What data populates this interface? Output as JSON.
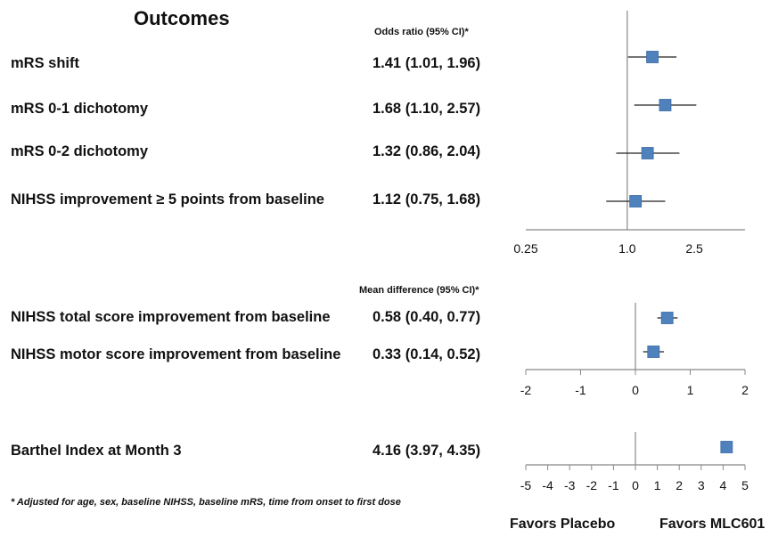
{
  "header": {
    "title": "Outcomes"
  },
  "footnote": "* Adjusted for age, sex, baseline NIHSS, baseline mRS, time from onset to first dose",
  "favors": {
    "left": "Favors Placebo",
    "right": "Favors MLC601"
  },
  "colors": {
    "marker": "#4f81bd",
    "line": "#222222",
    "axis": "#888888"
  },
  "chart_data": [
    {
      "type": "forest",
      "column_header": "Odds ratio (95% CI)*",
      "scale": "log",
      "xlim": [
        0.25,
        5.0
      ],
      "tick_values": [
        0.25,
        1.0,
        2.5
      ],
      "tick_labels": [
        "0.25",
        "1.0",
        "2.5"
      ],
      "rows": [
        {
          "outcome": "mRS shift",
          "value_text": "1.41 (1.01, 1.96)",
          "estimate": 1.41,
          "lower": 1.01,
          "upper": 1.96
        },
        {
          "outcome": "mRS 0-1 dichotomy",
          "value_text": "1.68 (1.10, 2.57)",
          "estimate": 1.68,
          "lower": 1.1,
          "upper": 2.57
        },
        {
          "outcome": "mRS 0-2 dichotomy",
          "value_text": "1.32 (0.86, 2.04)",
          "estimate": 1.32,
          "lower": 0.86,
          "upper": 2.04
        },
        {
          "outcome": "NIHSS improvement ≥ 5 points from baseline",
          "value_text": "1.12 (0.75, 1.68)",
          "estimate": 1.12,
          "lower": 0.75,
          "upper": 1.68
        }
      ]
    },
    {
      "type": "forest",
      "column_header": "Mean difference (95% CI)*",
      "scale": "linear",
      "xlim": [
        -2,
        2
      ],
      "tick_values": [
        -2,
        -1,
        0,
        1,
        2
      ],
      "tick_labels": [
        "-2",
        "-1",
        "0",
        "1",
        "2"
      ],
      "rows": [
        {
          "outcome": "NIHSS total score improvement from baseline",
          "value_text": "0.58 (0.40, 0.77)",
          "estimate": 0.58,
          "lower": 0.4,
          "upper": 0.77
        },
        {
          "outcome": "NIHSS motor score improvement from baseline",
          "value_text": "0.33 (0.14, 0.52)",
          "estimate": 0.33,
          "lower": 0.14,
          "upper": 0.52
        }
      ]
    },
    {
      "type": "forest",
      "column_header": "",
      "scale": "linear",
      "xlim": [
        -5,
        5
      ],
      "tick_values": [
        -5,
        -4,
        -3,
        -2,
        -1,
        0,
        1,
        2,
        3,
        4,
        5
      ],
      "tick_labels": [
        "-5",
        "-4",
        "-3",
        "-2",
        "-1",
        "0",
        "1",
        "2",
        "3",
        "4",
        "5"
      ],
      "rows": [
        {
          "outcome": "Barthel Index at Month 3",
          "value_text": "4.16 (3.97, 4.35)",
          "estimate": 4.16,
          "lower": 3.97,
          "upper": 4.35
        }
      ]
    }
  ]
}
